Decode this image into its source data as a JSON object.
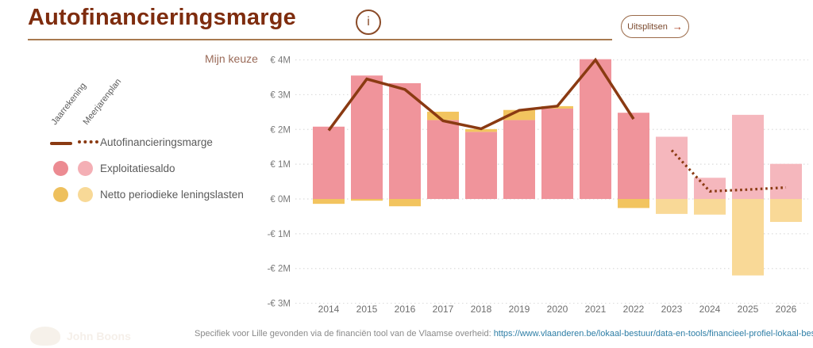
{
  "header": {
    "title": "Autofinancieringsmarge",
    "info_icon_glyph": "i",
    "split_button": {
      "label": "Uitsplitsen",
      "arrow": "→"
    }
  },
  "controls": {
    "my_choice_label": "Mijn keuze"
  },
  "legend": {
    "column_headers": [
      "Jaarrekening",
      "Meerjarenplan"
    ],
    "rows": [
      {
        "label": "Autofinancieringsmarge"
      },
      {
        "label": "Exploitatiesaldo"
      },
      {
        "label": "Netto periodieke leningslasten"
      }
    ]
  },
  "footer": {
    "caption": "Specifiek voor Lille gevonden via de financiën tool van de Vlaamse overheid: ",
    "link": "https://www.vlaanderen.be/lokaal-bestuur/data-en-tools/financieel-profiel-lokaal-bestuur",
    "watermark": "John Boons"
  },
  "colors": {
    "title": "#7e2c0e",
    "line": "#8a3a12",
    "bar_pink": "#f0949b",
    "bar_pink_light": "#f5b7bd",
    "bar_yellow": "#f2c45f",
    "bar_yellow_light": "#f9d997",
    "axis_text": "#7a7a7a",
    "x_axis_text": "#6e6e6e",
    "grid": "#dcdcdc",
    "link": "#2e7ea6"
  },
  "chart_data": {
    "type": "bar",
    "subtype": "stacked-bars-with-line",
    "title": "Autofinancieringsmarge",
    "categories": [
      "2014",
      "2015",
      "2016",
      "2017",
      "2018",
      "2019",
      "2020",
      "2021",
      "2022",
      "2023",
      "2024",
      "2025",
      "2026"
    ],
    "jaarrekening_years": [
      "2014",
      "2015",
      "2016",
      "2017",
      "2018",
      "2019",
      "2020",
      "2021",
      "2022"
    ],
    "meerjarenplan_years": [
      "2023",
      "2024",
      "2025",
      "2026"
    ],
    "unit": "EUR millions",
    "series": [
      {
        "name": "Exploitatiesaldo",
        "render": "bar",
        "values": [
          2.08,
          3.55,
          3.33,
          2.27,
          1.93,
          2.27,
          2.6,
          4.02,
          2.48,
          1.79,
          0.61,
          2.42,
          1.01
        ]
      },
      {
        "name": "Netto periodieke leningslasten",
        "render": "bar",
        "values": [
          -0.14,
          -0.05,
          -0.21,
          0.24,
          0.08,
          0.29,
          0.07,
          0,
          -0.26,
          -0.43,
          -0.45,
          -2.2,
          -0.66
        ]
      },
      {
        "name": "Autofinancieringsmarge",
        "render": "line",
        "values": [
          1.97,
          3.45,
          3.15,
          2.25,
          2.02,
          2.55,
          2.67,
          4.0,
          2.3,
          1.4,
          0.22,
          0.27,
          0.33
        ],
        "solid_until_index": 8
      }
    ],
    "y_ticks": [
      "€ 4M",
      "€ 3M",
      "€ 2M",
      "€ 1M",
      "€ 0M",
      "-€ 1M",
      "-€ 2M",
      "-€ 3M"
    ],
    "y_tick_values": [
      4,
      3,
      2,
      1,
      0,
      -1,
      -2,
      -3
    ],
    "ylim": [
      -3,
      4
    ],
    "grid": "horizontal dotted",
    "legend_position": "left"
  }
}
